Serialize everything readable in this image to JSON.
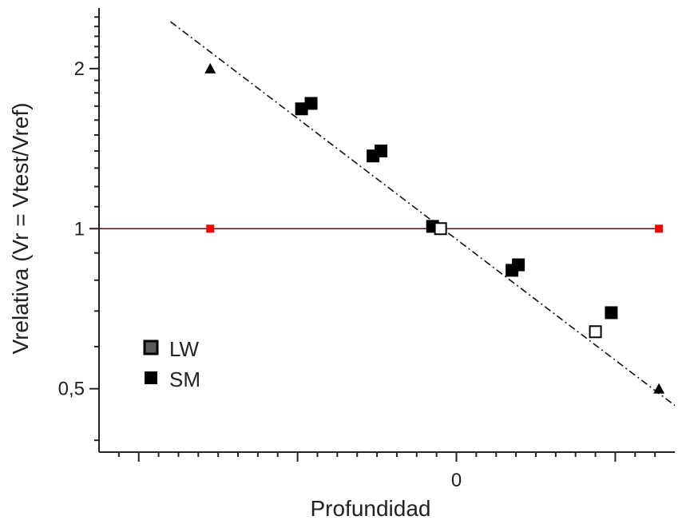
{
  "chart_data": {
    "type": "scatter",
    "title": "",
    "xlabel": "Profundidad",
    "ylabel": "Vrelativa (Vr = Vtest/Vref)",
    "x_ticks": [
      {
        "value": 0,
        "label": "0"
      }
    ],
    "y_ticks": [
      {
        "value": 2,
        "label": "2"
      },
      {
        "value": 1,
        "label": "1"
      },
      {
        "value": 0.5,
        "label": "0,5"
      }
    ],
    "y_scale": "log",
    "xlim": [
      -4.5,
      2.75
    ],
    "ylim": [
      0.38,
      2.6
    ],
    "grid": false,
    "legend_position": "bottom-left",
    "legend": [
      {
        "label": "LW",
        "marker": "square",
        "color": "#5a5a5a"
      },
      {
        "label": "SM",
        "marker": "square",
        "color": "#000000"
      }
    ],
    "series": [
      {
        "name": "SM",
        "marker": "square-filled",
        "color": "#000000",
        "points": [
          {
            "x": -1.95,
            "y": 1.68
          },
          {
            "x": -1.83,
            "y": 1.72
          },
          {
            "x": -1.05,
            "y": 1.37
          },
          {
            "x": -0.95,
            "y": 1.4
          },
          {
            "x": -0.3,
            "y": 1.01
          },
          {
            "x": 0.7,
            "y": 0.835
          },
          {
            "x": 0.78,
            "y": 0.855
          },
          {
            "x": 1.95,
            "y": 0.695
          }
        ]
      },
      {
        "name": "LW",
        "marker": "square-open",
        "color": "#000000",
        "points": [
          {
            "x": -0.2,
            "y": 1.0
          },
          {
            "x": 1.75,
            "y": 0.64
          }
        ]
      },
      {
        "marker": "triangle",
        "color": "#000000",
        "points": [
          {
            "x": -3.1,
            "y": 2.0
          },
          {
            "x": 2.55,
            "y": 0.5
          }
        ]
      },
      {
        "marker": "square-small",
        "color": "#ff0000",
        "points": [
          {
            "x": -3.1,
            "y": 1.0
          },
          {
            "x": 2.55,
            "y": 1.0
          }
        ]
      }
    ],
    "lines": [
      {
        "kind": "reference",
        "style": "solid",
        "color": "#5a1010",
        "from": {
          "x": -4.5,
          "y": 1.0
        },
        "to": {
          "x": 2.55,
          "y": 1.0
        }
      },
      {
        "kind": "fit",
        "style": "dashed",
        "color": "#111111",
        "from": {
          "x": -3.6,
          "y": 2.45
        },
        "to": {
          "x": 2.75,
          "y": 0.465
        }
      }
    ]
  }
}
